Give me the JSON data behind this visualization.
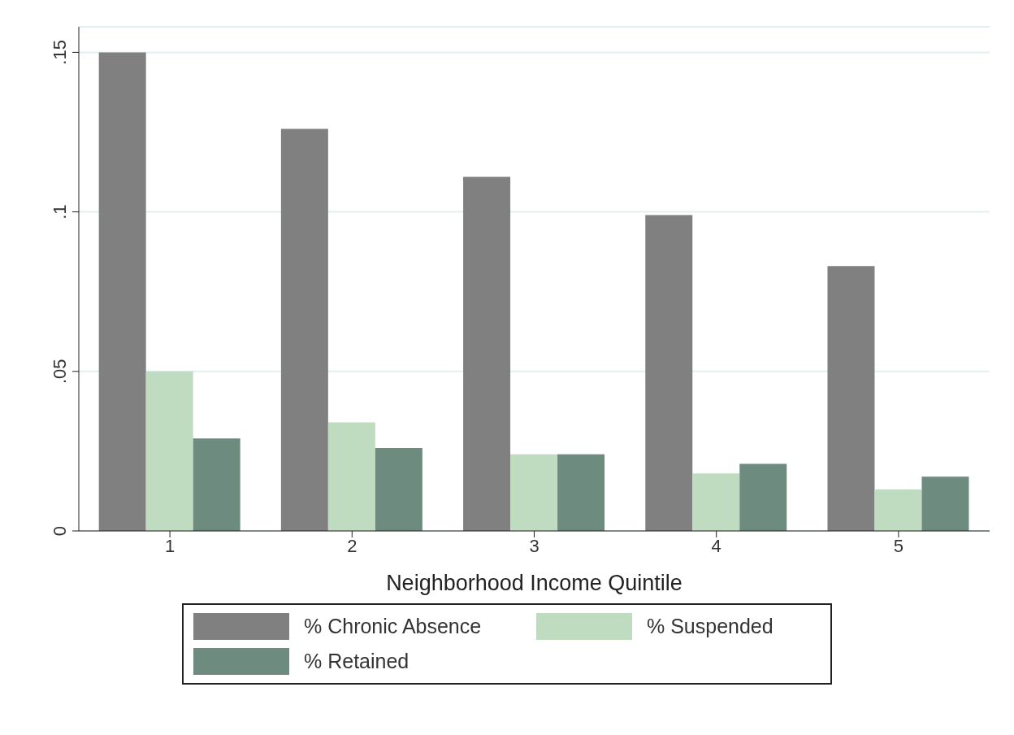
{
  "chart_data": {
    "type": "bar",
    "xlabel": "Neighborhood Income Quintile",
    "categories": [
      "1",
      "2",
      "3",
      "4",
      "5"
    ],
    "series": [
      {
        "name": "% Chronic Absence",
        "color": "#808080",
        "values": [
          0.15,
          0.126,
          0.111,
          0.099,
          0.083
        ]
      },
      {
        "name": "% Suspended",
        "color": "#c0dcc0",
        "values": [
          0.05,
          0.034,
          0.024,
          0.018,
          0.013
        ]
      },
      {
        "name": "% Retained",
        "color": "#6e8b7f",
        "values": [
          0.029,
          0.026,
          0.024,
          0.021,
          0.017
        ]
      }
    ],
    "ylim": [
      0,
      0.158
    ],
    "yticks": [
      0,
      {
        "value": 0.05,
        "label": ".05"
      },
      {
        "value": 0.1,
        "label": ".1"
      },
      {
        "value": 0.15,
        "label": ".15"
      }
    ],
    "grid": "y",
    "legend": "bottom"
  }
}
